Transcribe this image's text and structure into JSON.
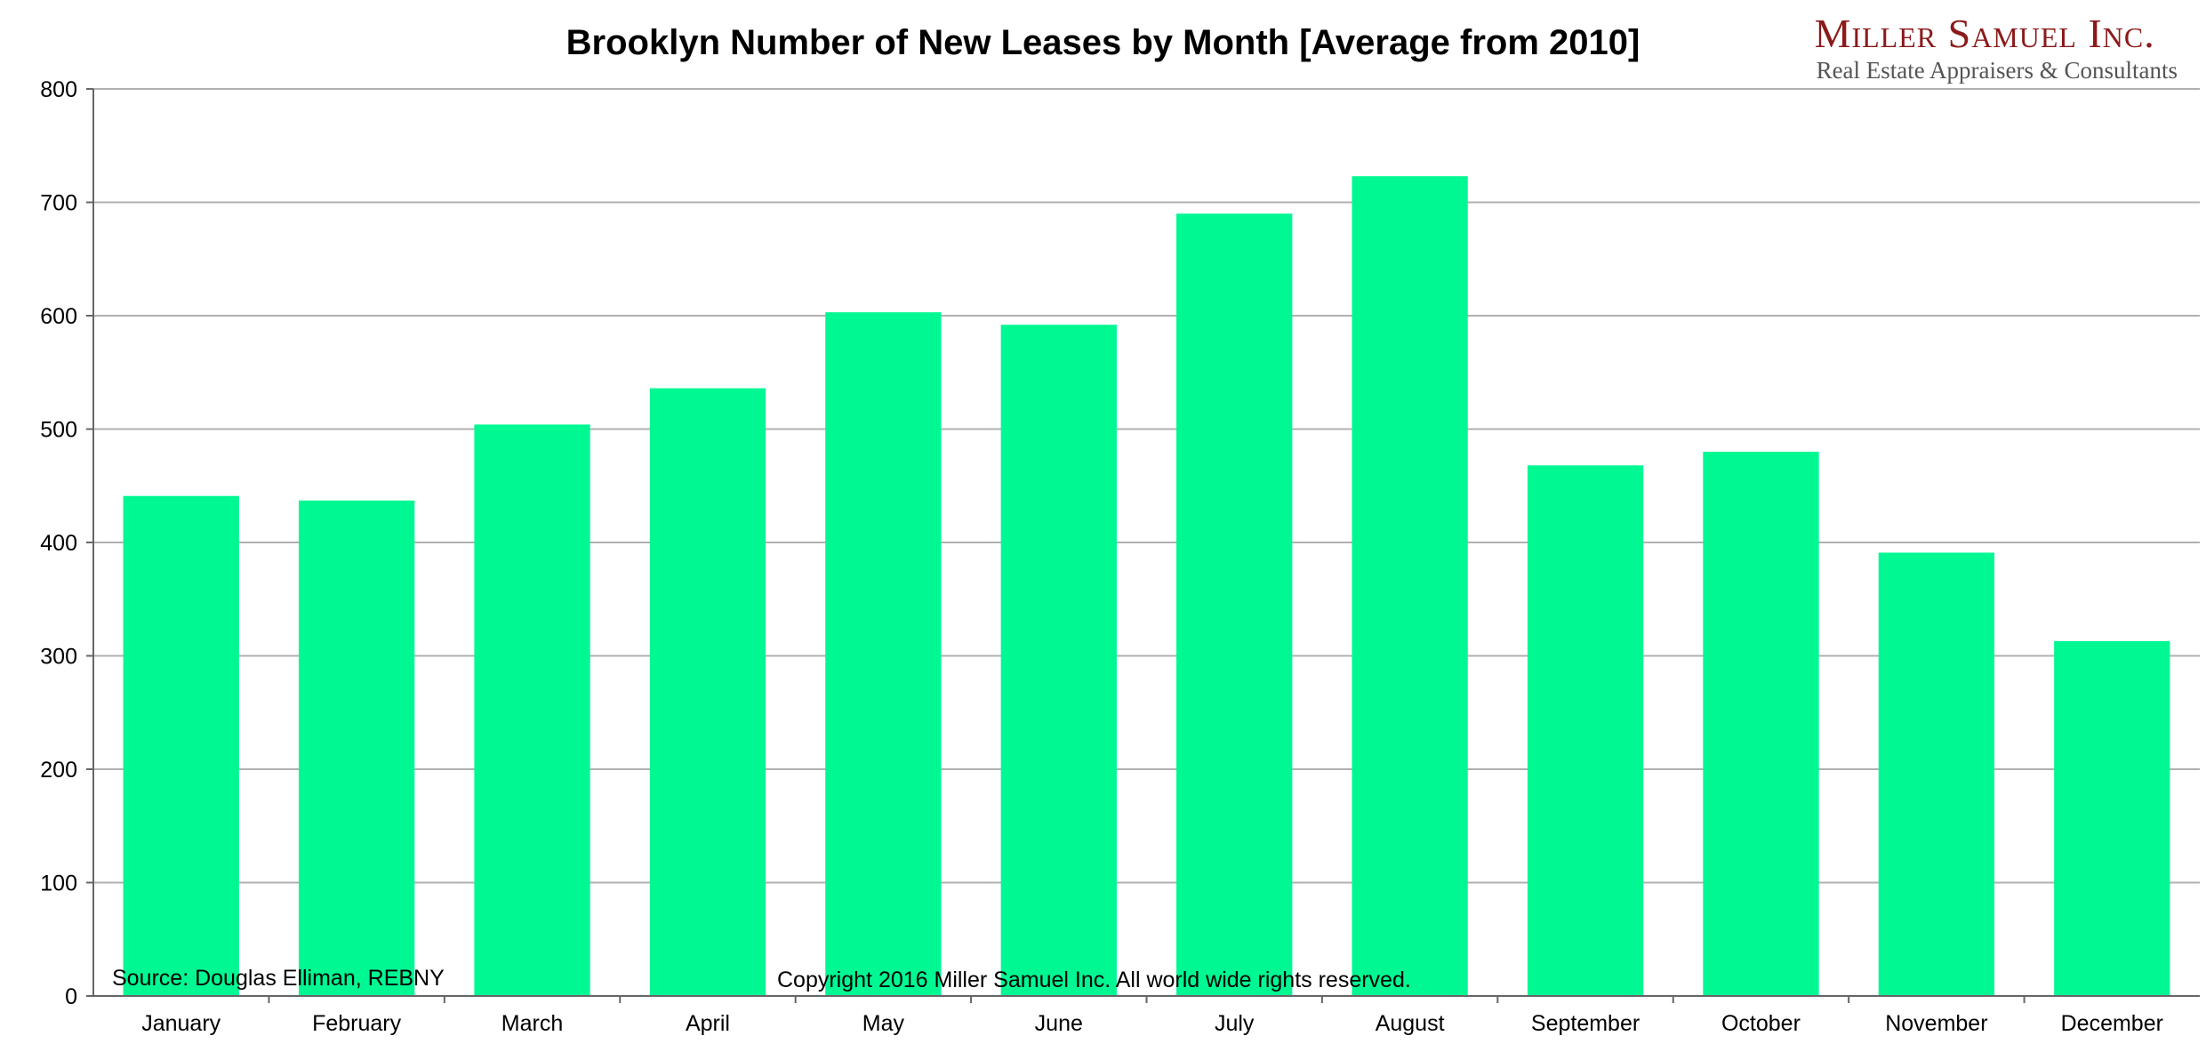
{
  "chart_data": {
    "type": "bar",
    "title": "Brooklyn Number of New Leases by Month [Average from 2010]",
    "xlabel": "",
    "ylabel": "",
    "categories": [
      "January",
      "February",
      "March",
      "April",
      "May",
      "June",
      "July",
      "August",
      "September",
      "October",
      "November",
      "December"
    ],
    "values": [
      441,
      437,
      504,
      536,
      603,
      592,
      690,
      723,
      468,
      480,
      391,
      313
    ],
    "ylim": [
      0,
      800
    ],
    "yticks": [
      0,
      100,
      200,
      300,
      400,
      500,
      600,
      700,
      800
    ],
    "grid": true,
    "legend": "none",
    "bar_color": "#00f892",
    "grid_color": "#b0b0b0"
  },
  "logo": {
    "name": "Miller Samuel Inc.",
    "tagline": "Real Estate Appraisers & Consultants"
  },
  "notes": {
    "source": "Source: Douglas Elliman, REBNY",
    "copyright": "Copyright 2016 Miller Samuel Inc.  All world wide rights reserved."
  }
}
